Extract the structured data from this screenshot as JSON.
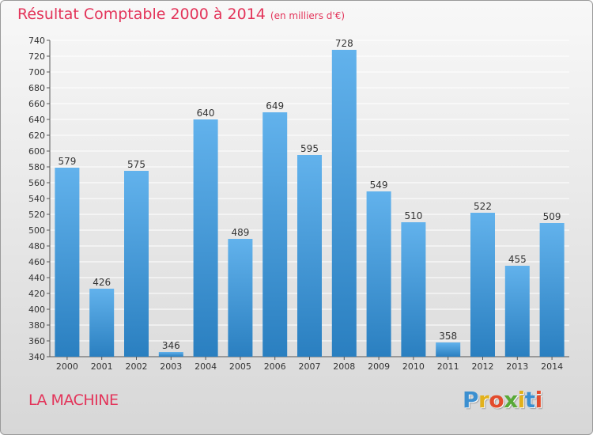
{
  "title": {
    "main": "Résultat Comptable 2000 à 2014",
    "unit": "(en milliers d'€)"
  },
  "commune": "LA MACHINE",
  "logo": {
    "text": "Proxiti",
    "colors": [
      "#3b8fd0",
      "#e2b11b",
      "#e34b2c",
      "#58a937",
      "#e2b11b",
      "#3b8fd0",
      "#e34b2c"
    ]
  },
  "colors": {
    "bar_top": "#62b2ec",
    "bar_bottom": "#2a7fc0",
    "title": "#e3345a",
    "grid": "#ffffff"
  },
  "chart_data": {
    "type": "bar",
    "categories": [
      "2000",
      "2001",
      "2002",
      "2003",
      "2004",
      "2005",
      "2006",
      "2007",
      "2008",
      "2009",
      "2010",
      "2011",
      "2012",
      "2013",
      "2014"
    ],
    "values": [
      579,
      426,
      575,
      346,
      640,
      489,
      649,
      595,
      728,
      549,
      510,
      358,
      522,
      455,
      509
    ],
    "ylim": [
      340,
      740
    ],
    "ytick_step": 20,
    "grid": true,
    "xlabel": "",
    "ylabel": ""
  }
}
